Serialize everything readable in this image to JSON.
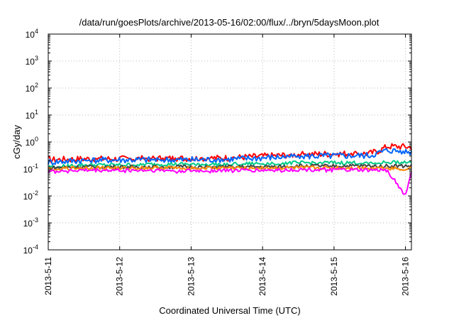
{
  "chart_data": {
    "type": "line",
    "title": "/data/run/goesPlots/archive/2013-05-16/02:00/flux/../bryn/5daysMoon.plot",
    "xlabel": "Coordinated Universal Time (UTC)",
    "ylabel": "cGy/day",
    "yscale": "log",
    "ylim": [
      0.0001,
      10000
    ],
    "xlim": [
      "2013-05-11 00:00",
      "2013-05-16 02:00"
    ],
    "y_ticks": [
      {
        "base": "10",
        "exp": "4"
      },
      {
        "base": "10",
        "exp": "3"
      },
      {
        "base": "10",
        "exp": "2"
      },
      {
        "base": "10",
        "exp": "1"
      },
      {
        "base": "10",
        "exp": "0"
      },
      {
        "base": "10",
        "exp": "-1"
      },
      {
        "base": "10",
        "exp": "-2"
      },
      {
        "base": "10",
        "exp": "-3"
      },
      {
        "base": "10",
        "exp": "-4"
      }
    ],
    "x_ticks": [
      "2013-5-11",
      "2013-5-12",
      "2013-5-13",
      "2013-5-14",
      "2013-5-15",
      "2013-5-16"
    ],
    "grid": true,
    "x": [
      "2013-05-11 00:00",
      "2013-05-11 12:00",
      "2013-05-12 00:00",
      "2013-05-12 12:00",
      "2013-05-13 00:00",
      "2013-05-13 12:00",
      "2013-05-14 00:00",
      "2013-05-14 12:00",
      "2013-05-15 00:00",
      "2013-05-15 12:00",
      "2013-05-15 15:00",
      "2013-05-15 18:00",
      "2013-05-16 00:00",
      "2013-05-16 02:00"
    ],
    "series": [
      {
        "color": "#ff0000",
        "values": [
          0.22,
          0.24,
          0.24,
          0.25,
          0.25,
          0.26,
          0.3,
          0.35,
          0.37,
          0.38,
          0.48,
          0.7,
          0.68,
          0.65
        ]
      },
      {
        "color": "#0066ff",
        "values": [
          0.18,
          0.21,
          0.22,
          0.22,
          0.22,
          0.23,
          0.26,
          0.3,
          0.31,
          0.32,
          0.4,
          0.5,
          0.45,
          0.42
        ]
      },
      {
        "color": "#00cc88",
        "values": [
          0.12,
          0.14,
          0.14,
          0.15,
          0.15,
          0.15,
          0.16,
          0.17,
          0.17,
          0.17,
          0.17,
          0.18,
          0.18,
          0.18
        ]
      },
      {
        "color": "#444444",
        "values": [
          0.11,
          0.12,
          0.12,
          0.12,
          0.12,
          0.12,
          0.12,
          0.13,
          0.13,
          0.13,
          0.13,
          0.13,
          0.13,
          0.13
        ]
      },
      {
        "color": "#ff8800",
        "values": [
          0.1,
          0.11,
          0.11,
          0.11,
          0.11,
          0.11,
          0.11,
          0.11,
          0.11,
          0.11,
          0.11,
          0.11,
          0.1,
          0.11
        ]
      },
      {
        "color": "#ff00ff",
        "values": [
          0.085,
          0.09,
          0.09,
          0.09,
          0.085,
          0.09,
          0.09,
          0.095,
          0.095,
          0.09,
          0.09,
          0.09,
          0.01,
          0.085
        ]
      }
    ]
  }
}
